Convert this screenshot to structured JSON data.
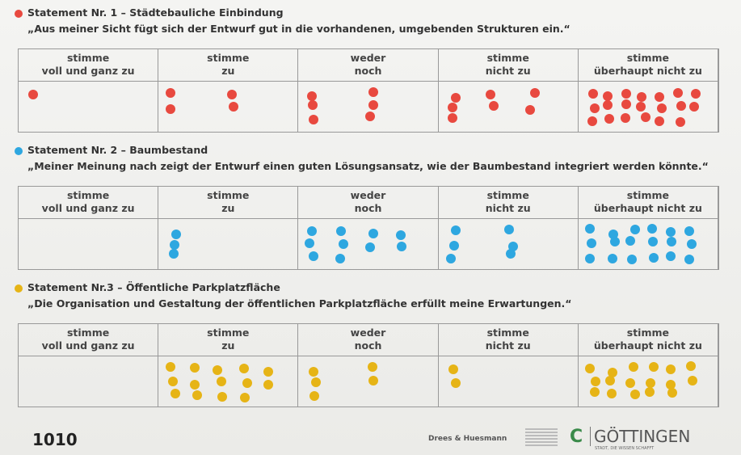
{
  "columns": [
    [
      "stimme",
      "voll und ganz zu"
    ],
    [
      "stimme",
      "zu"
    ],
    [
      "weder",
      "noch"
    ],
    [
      "stimme",
      "nicht zu"
    ],
    [
      "stimme",
      "überhaupt nicht zu"
    ]
  ],
  "statements": [
    {
      "title": "Statement Nr. 1 – Städtebauliche Einbindung",
      "quote": "„Aus meiner Sicht fügt sich der Entwurf gut in die vorhandenen, umgebenden Strukturen ein.“",
      "color": "#e8493f",
      "votes": [
        1,
        4,
        6,
        7,
        20
      ]
    },
    {
      "title": "Statement Nr. 2 – Baumbestand",
      "quote": "„Meiner Meinung nach zeigt der Entwurf einen guten Lösungsansatz, wie der Baumbestand integriert werden könnte.“",
      "color": "#2ea7e0",
      "votes": [
        0,
        3,
        10,
        6,
        18
      ]
    },
    {
      "title": "Statement Nr.3 – Öffentliche Parkplatzfläche",
      "quote": "„Die Organisation und Gestaltung der öffentlichen Parkplatzfläche erfüllt meine Erwartungen.“",
      "color": "#e6b416",
      "votes": [
        0,
        14,
        5,
        2,
        17
      ]
    }
  ],
  "footer": {
    "number": "1010",
    "logo1": "Drees & Huesmann",
    "logo2": "GÖTTINGEN",
    "logo2_sub": "STADT, DIE WISSEN SCHAFFT"
  }
}
